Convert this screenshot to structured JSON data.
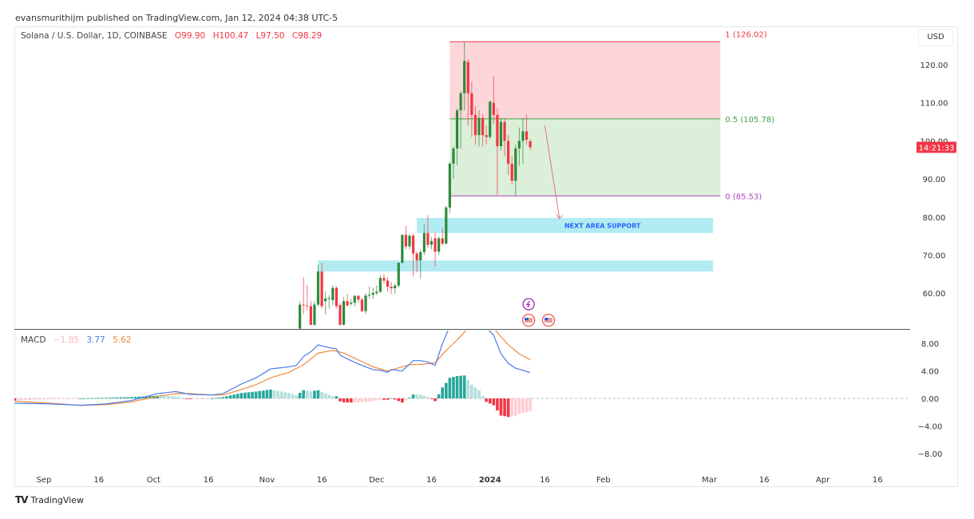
{
  "header": {
    "published": "evansmurithijm published on TradingView.com, Jan 12, 2024 04:38 UTC-5"
  },
  "symbol": {
    "title": "Solana / U.S. Dollar, 1D, COINBASE",
    "open": "O99.90",
    "high": "H100.47",
    "low": "L97.50",
    "close": "C98.29"
  },
  "currency": "USD",
  "countdown": "14:21:33",
  "price_axis": [
    "120.00",
    "110.00",
    "100.00",
    "90.00",
    "80.00",
    "70.00",
    "60.00"
  ],
  "macd_axis": [
    "8.00",
    "4.00",
    "0.00",
    "−4.00",
    "−8.00"
  ],
  "time_axis": [
    {
      "label": "Sep",
      "date": "2023-09-01"
    },
    {
      "label": "16",
      "date": "2023-09-16"
    },
    {
      "label": "Oct",
      "date": "2023-10-01"
    },
    {
      "label": "16",
      "date": "2023-10-16"
    },
    {
      "label": "Nov",
      "date": "2023-11-01"
    },
    {
      "label": "16",
      "date": "2023-11-16"
    },
    {
      "label": "Dec",
      "date": "2023-12-01"
    },
    {
      "label": "16",
      "date": "2023-12-16"
    },
    {
      "label": "2024",
      "date": "2024-01-01",
      "bold": true
    },
    {
      "label": "16",
      "date": "2024-01-16"
    },
    {
      "label": "Feb",
      "date": "2024-02-01"
    },
    {
      "label": "Mar",
      "date": "2024-03-01"
    },
    {
      "label": "16",
      "date": "2024-03-16"
    },
    {
      "label": "Apr",
      "date": "2024-04-01"
    },
    {
      "label": "16",
      "date": "2024-04-16"
    }
  ],
  "macd": {
    "label": "MACD",
    "hist": "−1.85",
    "macd": "3.77",
    "signal": "5.62"
  },
  "colors": {
    "up": "#2e8b3a",
    "down": "#f23645",
    "macd": "#4a7bea",
    "signal": "#f08a3c",
    "hist_up": "#26a69a",
    "hist_up_light": "#b2dfdb",
    "hist_down": "#f23645",
    "hist_down_light": "#ffcdd2",
    "zone": "#b2ebf2",
    "zone_text": "#2962ff",
    "fib_upper": "#fcd6d9",
    "fib_lower": "#dcefd9"
  },
  "fib": {
    "start": "2023-12-21",
    "end": "2024-03-04",
    "levels": [
      {
        "label": "1 (126.02)",
        "price": 126.02,
        "color": "#f23645"
      },
      {
        "label": "0.5 (105.78)",
        "price": 105.78,
        "color": "#43a047"
      },
      {
        "label": "0 (85.53)",
        "price": 85.53,
        "color": "#ab47bc"
      }
    ]
  },
  "zones": [
    {
      "label": "NEXT AREA SUPPORT",
      "start": "2023-12-12",
      "end": "2024-03-02",
      "top": 79.75,
      "bottom": 75.8
    },
    {
      "label": "",
      "start": "2023-11-15",
      "end": "2024-03-02",
      "top": 68.6,
      "bottom": 65.7
    }
  ],
  "arrow": {
    "from": {
      "date": "2024-01-16",
      "price": 104.0
    },
    "to": {
      "date": "2024-01-20",
      "price": 79.6
    }
  },
  "events": [
    {
      "icon": "lightning-icon",
      "date": "2024-01-12"
    },
    {
      "icon": "us-flag-icon",
      "date": "2024-01-12"
    },
    {
      "icon": "us-flag-icon",
      "date": "2024-01-17"
    }
  ],
  "chart_data": {
    "type": "candlestick",
    "start_date": "2023-11-10",
    "ohlc": [
      [
        50.7,
        57.8,
        50.3,
        57.0
      ],
      [
        57.0,
        64.2,
        54.5,
        56.8
      ],
      [
        56.8,
        62.2,
        55.5,
        56.6
      ],
      [
        56.6,
        58.0,
        51.6,
        51.7
      ],
      [
        51.7,
        57.8,
        51.4,
        57.0
      ],
      [
        57.0,
        67.5,
        56.5,
        65.7
      ],
      [
        65.7,
        68.0,
        56.0,
        56.6
      ],
      [
        57.9,
        60.5,
        54.5,
        58.6
      ],
      [
        58.6,
        59.5,
        56.0,
        58.7
      ],
      [
        58.2,
        62.0,
        56.8,
        61.4
      ],
      [
        61.4,
        61.8,
        56.0,
        56.6
      ],
      [
        56.9,
        57.5,
        51.5,
        51.7
      ],
      [
        51.7,
        59.0,
        51.5,
        57.9
      ],
      [
        57.9,
        59.8,
        56.5,
        56.8
      ],
      [
        57.2,
        58.5,
        56.8,
        57.5
      ],
      [
        57.5,
        59.5,
        56.5,
        59.3
      ],
      [
        59.3,
        59.5,
        57.5,
        58.3
      ],
      [
        58.3,
        58.8,
        55.0,
        55.3
      ],
      [
        55.3,
        60.0,
        54.5,
        59.4
      ],
      [
        59.4,
        61.8,
        58.5,
        59.6
      ],
      [
        59.6,
        61.5,
        58.5,
        60.1
      ],
      [
        60.0,
        62.0,
        59.5,
        60.4
      ],
      [
        60.4,
        64.8,
        60.0,
        64.0
      ],
      [
        64.0,
        65.0,
        62.5,
        63.3
      ],
      [
        63.3,
        64.2,
        60.5,
        61.7
      ],
      [
        61.7,
        63.0,
        59.8,
        61.3
      ],
      [
        61.3,
        62.5,
        59.8,
        62.0
      ],
      [
        62.0,
        67.5,
        61.5,
        68.0
      ],
      [
        68.0,
        75.5,
        67.8,
        75.3
      ],
      [
        75.3,
        77.7,
        71.5,
        72.3
      ],
      [
        72.3,
        75.5,
        71.5,
        75.1
      ],
      [
        75.1,
        75.5,
        64.5,
        70.4
      ],
      [
        70.4,
        71.0,
        65.5,
        68.6
      ],
      [
        68.6,
        71.5,
        63.8,
        70.8
      ],
      [
        70.8,
        78.0,
        70.0,
        75.8
      ],
      [
        75.8,
        80.5,
        72.0,
        72.7
      ],
      [
        72.7,
        74.8,
        71.5,
        73.7
      ],
      [
        74.4,
        76.0,
        67.0,
        70.9
      ],
      [
        70.9,
        75.0,
        70.0,
        74.4
      ],
      [
        74.4,
        77.0,
        72.5,
        73.0
      ],
      [
        73.0,
        83.0,
        72.8,
        82.5
      ],
      [
        82.5,
        94.5,
        81.0,
        94.0
      ],
      [
        94.0,
        98.5,
        90.0,
        98.0
      ],
      [
        98.0,
        108.5,
        93.5,
        108.0
      ],
      [
        108.0,
        113.0,
        98.0,
        112.5
      ],
      [
        112.5,
        126.02,
        108.0,
        121.0
      ],
      [
        120.7,
        121.5,
        104.0,
        112.5
      ],
      [
        112.5,
        115.5,
        101.0,
        106.8
      ],
      [
        106.8,
        109.0,
        99.0,
        101.5
      ],
      [
        101.5,
        108.0,
        98.5,
        106.0
      ],
      [
        106.0,
        107.0,
        98.5,
        101.5
      ],
      [
        101.5,
        104.0,
        99.0,
        101.0
      ],
      [
        101.0,
        110.5,
        100.5,
        110.3
      ],
      [
        110.0,
        117.0,
        104.5,
        106.8
      ],
      [
        106.8,
        108.5,
        85.8,
        98.6
      ],
      [
        98.6,
        106.0,
        97.5,
        105.0
      ],
      [
        105.0,
        106.0,
        96.0,
        100.0
      ],
      [
        100.0,
        101.5,
        91.0,
        94.0
      ],
      [
        94.0,
        96.0,
        88.5,
        89.5
      ],
      [
        89.5,
        99.0,
        85.6,
        98.0
      ],
      [
        98.0,
        103.5,
        93.5,
        100.0
      ],
      [
        100.0,
        106.0,
        94.0,
        102.5
      ],
      [
        102.5,
        107.0,
        99.0,
        100.3
      ],
      [
        99.9,
        100.47,
        97.5,
        98.29
      ]
    ],
    "macd_line": [
      [
        "2023-08-24",
        -0.7
      ],
      [
        "2023-09-03",
        -0.8
      ],
      [
        "2023-09-11",
        -1.0
      ],
      [
        "2023-09-18",
        -0.8
      ],
      [
        "2023-09-25",
        -0.3
      ],
      [
        "2023-10-02",
        0.7
      ],
      [
        "2023-10-07",
        1.0
      ],
      [
        "2023-10-11",
        0.6
      ],
      [
        "2023-10-17",
        0.5
      ],
      [
        "2023-10-20",
        0.7
      ],
      [
        "2023-10-25",
        2.1
      ],
      [
        "2023-10-29",
        3.0
      ],
      [
        "2023-11-02",
        4.3
      ],
      [
        "2023-11-07",
        4.6
      ],
      [
        "2023-11-09",
        4.8
      ],
      [
        "2023-11-11",
        6.1
      ],
      [
        "2023-11-13",
        6.8
      ],
      [
        "2023-11-15",
        7.8
      ],
      [
        "2023-11-18",
        7.4
      ],
      [
        "2023-11-20",
        7.2
      ],
      [
        "2023-11-21",
        6.3
      ],
      [
        "2023-11-24",
        5.5
      ],
      [
        "2023-11-27",
        4.8
      ],
      [
        "2023-11-30",
        4.2
      ],
      [
        "2023-12-02",
        4.1
      ],
      [
        "2023-12-04",
        3.8
      ],
      [
        "2023-12-05",
        4.2
      ],
      [
        "2023-12-08",
        4.0
      ],
      [
        "2023-12-11",
        5.5
      ],
      [
        "2023-12-13",
        5.5
      ],
      [
        "2023-12-15",
        5.3
      ],
      [
        "2023-12-17",
        4.8
      ],
      [
        "2023-12-19",
        8.0
      ],
      [
        "2023-12-21",
        10.5
      ],
      [
        "2023-12-25",
        13.0
      ],
      [
        "2023-12-27",
        12.8
      ],
      [
        "2023-12-29",
        12.0
      ],
      [
        "2023-12-31",
        10.3
      ],
      [
        "2024-01-02",
        9.2
      ],
      [
        "2024-01-04",
        6.5
      ],
      [
        "2024-01-06",
        5.1
      ],
      [
        "2024-01-08",
        4.4
      ],
      [
        "2024-01-10",
        4.1
      ],
      [
        "2024-01-12",
        3.77
      ]
    ],
    "signal_line": [
      [
        "2023-08-24",
        -0.4
      ],
      [
        "2023-09-03",
        -0.7
      ],
      [
        "2023-09-11",
        -1.0
      ],
      [
        "2023-09-18",
        -0.9
      ],
      [
        "2023-09-25",
        -0.5
      ],
      [
        "2023-10-02",
        0.3
      ],
      [
        "2023-10-07",
        0.7
      ],
      [
        "2023-10-11",
        0.7
      ],
      [
        "2023-10-17",
        0.5
      ],
      [
        "2023-10-20",
        0.5
      ],
      [
        "2023-10-25",
        1.3
      ],
      [
        "2023-10-29",
        2.0
      ],
      [
        "2023-11-02",
        3.0
      ],
      [
        "2023-11-07",
        3.8
      ],
      [
        "2023-11-11",
        4.9
      ],
      [
        "2023-11-15",
        6.6
      ],
      [
        "2023-11-19",
        7.0
      ],
      [
        "2023-11-22",
        6.6
      ],
      [
        "2023-11-26",
        5.6
      ],
      [
        "2023-11-30",
        4.6
      ],
      [
        "2023-12-04",
        4.0
      ],
      [
        "2023-12-06",
        4.3
      ],
      [
        "2023-12-10",
        4.9
      ],
      [
        "2023-12-14",
        5.0
      ],
      [
        "2023-12-17",
        5.2
      ],
      [
        "2023-12-20",
        7.0
      ],
      [
        "2023-12-23",
        8.5
      ],
      [
        "2023-12-27",
        10.8
      ],
      [
        "2023-12-31",
        10.8
      ],
      [
        "2024-01-02",
        10.2
      ],
      [
        "2024-01-04",
        9.0
      ],
      [
        "2024-01-06",
        7.8
      ],
      [
        "2024-01-09",
        6.5
      ],
      [
        "2024-01-12",
        5.62
      ]
    ],
    "price_range": [
      50,
      128
    ],
    "macd_range": [
      -10.5,
      10.3
    ]
  },
  "brand": "TradingView"
}
